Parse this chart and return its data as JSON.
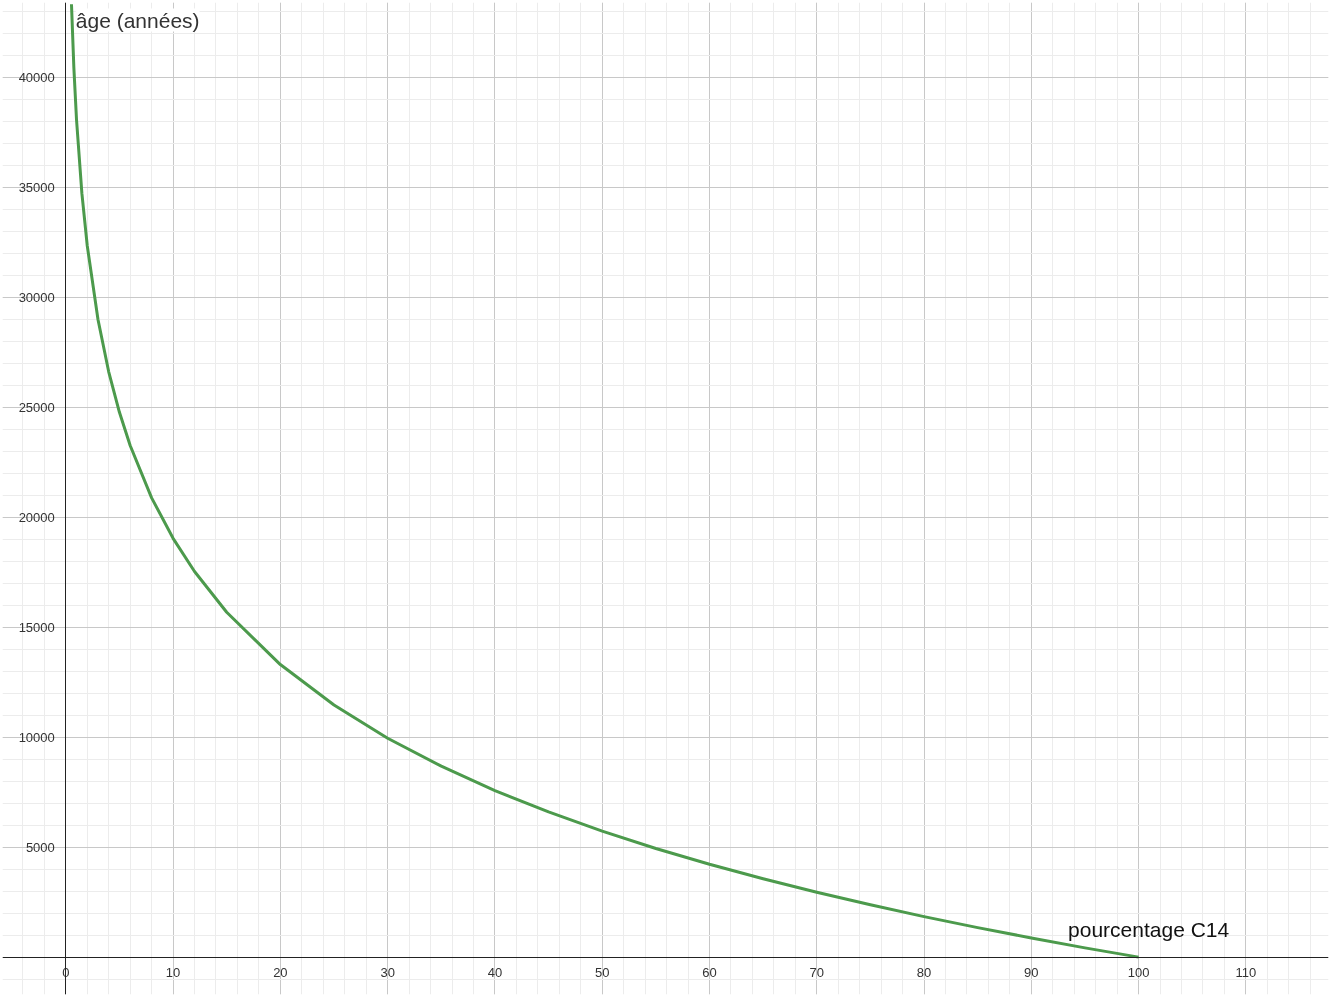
{
  "chart_data": {
    "type": "line",
    "xlabel": "pourcentage C14",
    "ylabel": "âge (années)",
    "x": [
      0.53,
      0.75,
      1,
      1.5,
      2,
      3,
      4,
      5,
      6,
      8,
      10,
      12,
      15,
      20,
      25,
      30,
      35,
      40,
      45,
      50,
      55,
      60,
      65,
      70,
      75,
      80,
      85,
      90,
      95,
      100
    ],
    "series": [
      {
        "color": "#4c9a4c",
        "values": [
          43320,
          40450,
          38070,
          34720,
          32340,
          28990,
          26610,
          24770,
          23260,
          20880,
          19040,
          17530,
          15680,
          13300,
          11460,
          9950,
          8680,
          7570,
          6600,
          5730,
          4940,
          4220,
          3560,
          2950,
          2380,
          1840,
          1340,
          870,
          420,
          0
        ]
      }
    ],
    "xlim": [
      -5.9,
      117.7
    ],
    "ylim": [
      -1700,
      43400
    ],
    "xticks": [
      0,
      10,
      20,
      30,
      40,
      50,
      60,
      70,
      80,
      90,
      100,
      110
    ],
    "yticks": [
      5000,
      10000,
      15000,
      20000,
      25000,
      30000,
      35000,
      40000
    ],
    "grid": true,
    "marker": "none",
    "line_style": "solid"
  }
}
